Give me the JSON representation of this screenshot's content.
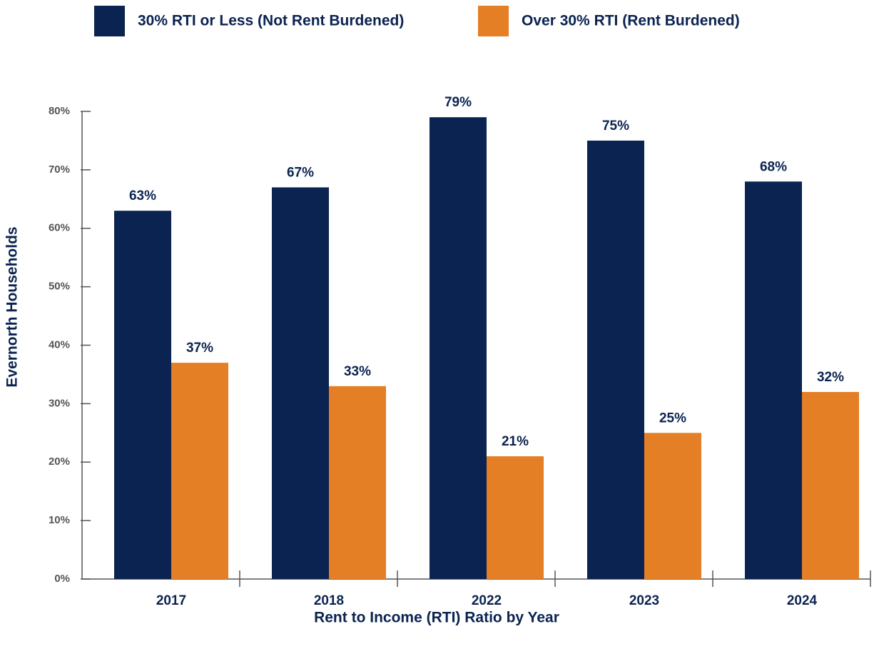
{
  "chart_data": {
    "type": "bar",
    "x_label": "Rent to Income (RTI) Ratio by Year",
    "y_label": "Evernorth Households",
    "categories": [
      "2017",
      "2018",
      "2022",
      "2023",
      "2024"
    ],
    "series": [
      {
        "name": "30% RTI or Less (Not Rent Burdened)",
        "color": "#0b2350",
        "values": [
          63,
          67,
          79,
          75,
          68
        ],
        "value_labels": [
          "63%",
          "67%",
          "79%",
          "75%",
          "68%"
        ]
      },
      {
        "name": "Over 30% RTI (Rent Burdened)",
        "color": "#e47f25",
        "values": [
          37,
          33,
          21,
          25,
          32
        ],
        "value_labels": [
          "37%",
          "33%",
          "21%",
          "25%",
          "32%"
        ]
      }
    ],
    "ylim": [
      0,
      80
    ],
    "yticks": [
      {
        "value": 0,
        "label": "0%"
      },
      {
        "value": 10,
        "label": "10%"
      },
      {
        "value": 20,
        "label": "20%"
      },
      {
        "value": 30,
        "label": "30%"
      },
      {
        "value": 40,
        "label": "40%"
      },
      {
        "value": 50,
        "label": "50%"
      },
      {
        "value": 60,
        "label": "60%"
      },
      {
        "value": 70,
        "label": "70%"
      },
      {
        "value": 80,
        "label": "80%"
      }
    ],
    "legend": "top"
  }
}
